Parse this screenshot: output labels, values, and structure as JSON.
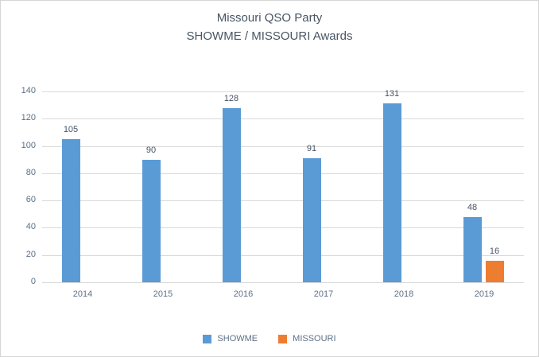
{
  "chart_data": {
    "type": "bar",
    "title": "Missouri QSO Party",
    "subtitle": "SHOWME / MISSOURI Awards",
    "categories": [
      "2014",
      "2015",
      "2016",
      "2017",
      "2018",
      "2019"
    ],
    "series": [
      {
        "name": "SHOWME",
        "color": "#5B9BD5",
        "values": [
          105,
          90,
          128,
          91,
          131,
          48
        ]
      },
      {
        "name": "MISSOURI",
        "color": "#ED7D31",
        "values": [
          null,
          null,
          null,
          null,
          null,
          16
        ]
      }
    ],
    "ylim": [
      0,
      140
    ],
    "ytick_step": 20,
    "ytick_labels": [
      "0",
      "20",
      "40",
      "60",
      "80",
      "100",
      "120",
      "140"
    ],
    "grid": true,
    "data_labels": true,
    "legend_position": "bottom"
  },
  "style": {
    "title_color": "#485563",
    "data_label_color": "#455466",
    "axis_label_color": "#5e7086",
    "legend_text_color": "#5e7086",
    "gridline_color": "#d9d9d9",
    "axis_line_color": "#d9d9d9",
    "border_color": "#d6d6d6",
    "background": "#ffffff"
  }
}
